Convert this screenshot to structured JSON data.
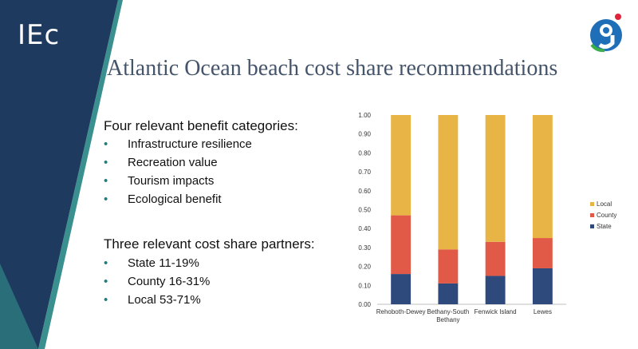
{
  "brand": {
    "logo_text": "IEc"
  },
  "slide": {
    "title": "Atlantic Ocean beach cost share recommendations"
  },
  "benefits": {
    "heading": "Four relevant benefit categories:",
    "items": [
      "Infrastructure resilience",
      "Recreation value",
      "Tourism impacts",
      "Ecological benefit"
    ]
  },
  "partners": {
    "heading": "Three relevant cost share partners:",
    "items": [
      "State 11-19%",
      "County 16-31%",
      "Local 53-71%"
    ]
  },
  "colors": {
    "state": "#2e4a7d",
    "county": "#e05a47",
    "local": "#e8b445",
    "band_dark": "#1f3a5f",
    "band_teal": "#3a8f8f"
  },
  "icons": {
    "bullet": "•"
  },
  "chart_data": {
    "type": "bar",
    "stacked": true,
    "categories": [
      "Rehoboth-Dewey",
      "Bethany-South Bethany",
      "Fenwick Island",
      "Lewes"
    ],
    "series": [
      {
        "name": "State",
        "values": [
          0.16,
          0.11,
          0.15,
          0.19
        ],
        "color": "#2e4a7d"
      },
      {
        "name": "County",
        "values": [
          0.31,
          0.18,
          0.18,
          0.16
        ],
        "color": "#e05a47"
      },
      {
        "name": "Local",
        "values": [
          0.53,
          0.71,
          0.67,
          0.65
        ],
        "color": "#e8b445"
      }
    ],
    "ylim": [
      0,
      1
    ],
    "yticks": [
      "0.00",
      "0.10",
      "0.20",
      "0.30",
      "0.40",
      "0.50",
      "0.60",
      "0.70",
      "0.80",
      "0.90",
      "1.00"
    ],
    "legend": [
      "Local",
      "County",
      "State"
    ],
    "legend_position": "right",
    "grid": false
  }
}
